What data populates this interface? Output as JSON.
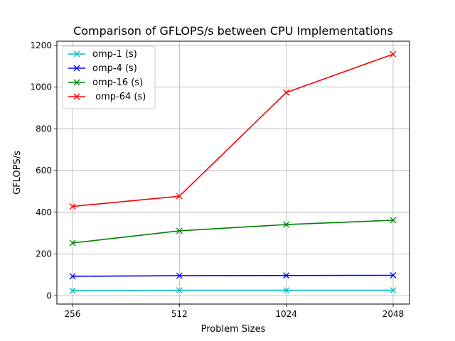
{
  "chart_data": {
    "type": "line",
    "title": "Comparison of GFLOPS/s between CPU Implementations",
    "xlabel": "Problem Sizes",
    "ylabel": "GFLOPS/s",
    "categories": [
      "256",
      "512",
      "1024",
      "2048"
    ],
    "ylim": [
      -40,
      1220
    ],
    "yticks": [
      0,
      200,
      400,
      600,
      800,
      1000,
      1200
    ],
    "grid": true,
    "legend_position": "top-left",
    "marker": "x",
    "series": [
      {
        "name": "omp-1 (s)",
        "color": "#00bfbf",
        "values": [
          24,
          26,
          26,
          26
        ]
      },
      {
        "name": "omp-4 (s)",
        "color": "#0000ff",
        "values": [
          93,
          96,
          97,
          98
        ]
      },
      {
        "name": "omp-16 (s)",
        "color": "#008000",
        "values": [
          253,
          311,
          341,
          362
        ]
      },
      {
        "name": " omp-64 (s)",
        "color": "#ff0000",
        "values": [
          428,
          477,
          974,
          1158
        ]
      }
    ]
  }
}
